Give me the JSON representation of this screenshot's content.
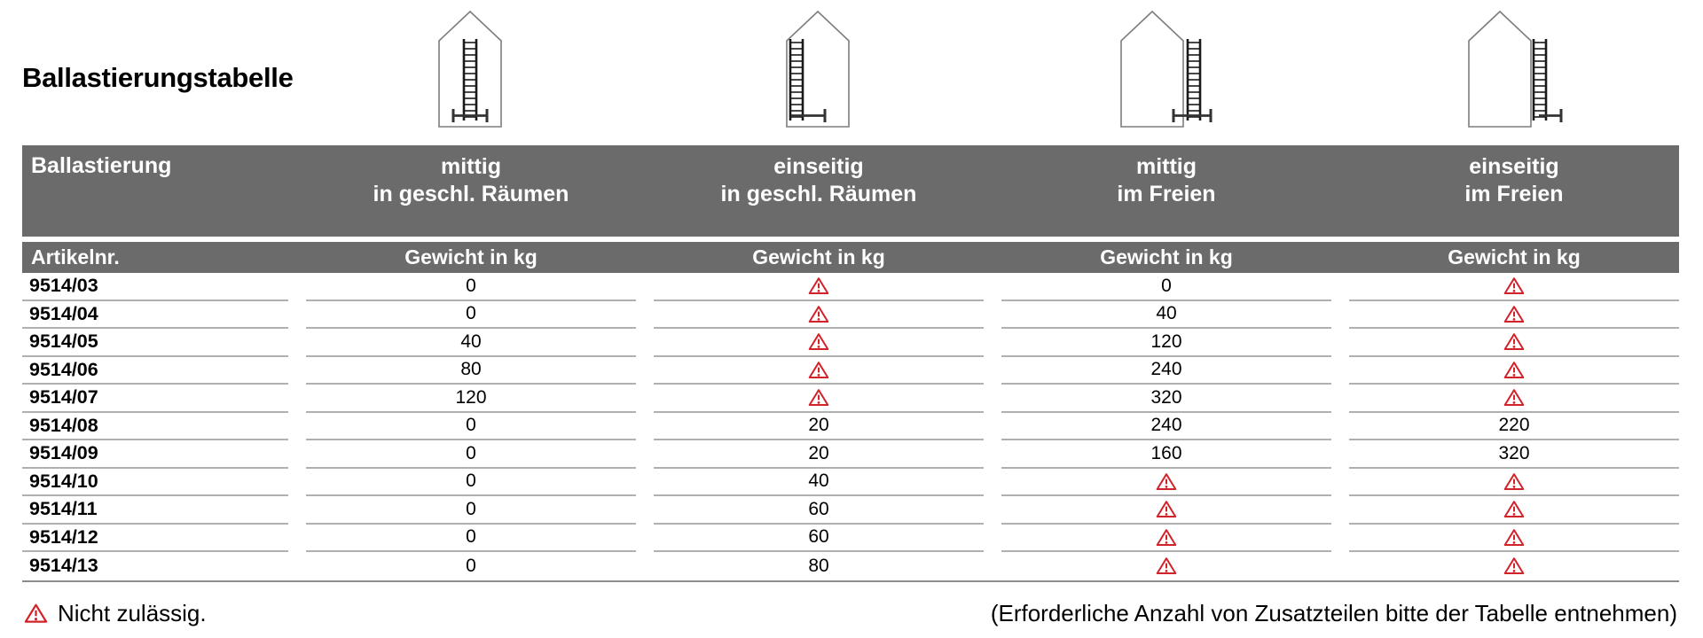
{
  "page": {
    "title": "Ballastierungstabelle"
  },
  "table": {
    "header": {
      "col0": "Ballastierung",
      "columns": [
        {
          "line1": "mittig",
          "line2": "in geschl. Räumen",
          "icon": "house-ladder-center-indoor"
        },
        {
          "line1": "einseitig",
          "line2": "in geschl. Räumen",
          "icon": "house-ladder-side-indoor"
        },
        {
          "line1": "mittig",
          "line2": "im Freien",
          "icon": "house-ladder-center-outdoor"
        },
        {
          "line1": "einseitig",
          "line2": "im Freien",
          "icon": "house-ladder-side-outdoor"
        }
      ],
      "subheader_col0": "Artikelnr.",
      "subheader_value": "Gewicht in kg"
    },
    "rows": [
      {
        "article": "9514/03",
        "values": [
          "0",
          "warning",
          "0",
          "warning"
        ]
      },
      {
        "article": "9514/04",
        "values": [
          "0",
          "warning",
          "40",
          "warning"
        ]
      },
      {
        "article": "9514/05",
        "values": [
          "40",
          "warning",
          "120",
          "warning"
        ]
      },
      {
        "article": "9514/06",
        "values": [
          "80",
          "warning",
          "240",
          "warning"
        ]
      },
      {
        "article": "9514/07",
        "values": [
          "120",
          "warning",
          "320",
          "warning"
        ]
      },
      {
        "article": "9514/08",
        "values": [
          "0",
          "20",
          "240",
          "220"
        ]
      },
      {
        "article": "9514/09",
        "values": [
          "0",
          "20",
          "160",
          "320"
        ]
      },
      {
        "article": "9514/10",
        "values": [
          "0",
          "40",
          "warning",
          "warning"
        ]
      },
      {
        "article": "9514/11",
        "values": [
          "0",
          "60",
          "warning",
          "warning"
        ]
      },
      {
        "article": "9514/12",
        "values": [
          "0",
          "60",
          "warning",
          "warning"
        ]
      },
      {
        "article": "9514/13",
        "values": [
          "0",
          "80",
          "warning",
          "warning"
        ]
      }
    ]
  },
  "footer": {
    "not_allowed_label": "Nicht zulässig.",
    "note": "(Erforderliche Anzahl von Zusatzteilen bitte der Tabelle entnehmen)"
  },
  "colors": {
    "header_bg": "#6b6b6b",
    "row_line": "#b0b0b0",
    "bottom_line": "#8c8c8c",
    "warning_red": "#d2232a",
    "house_outline": "#7d7d7d",
    "ladder": "#1a1a1a"
  }
}
